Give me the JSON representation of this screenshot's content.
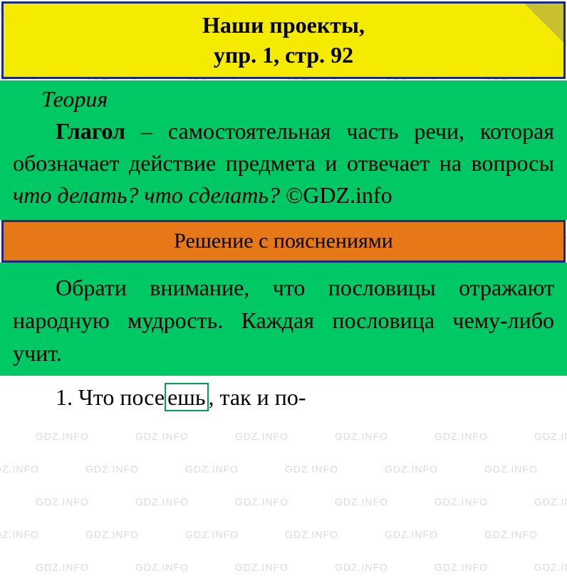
{
  "header": {
    "line1": "Наши проекты,",
    "line2": "упр. 1, стр. 92",
    "bg_color": "#f5eb00",
    "border_color": "#1a2980"
  },
  "theory": {
    "label": "Теория",
    "term": "Глагол",
    "dash": " – ",
    "text1": "самостоятельная часть речи, которая обозначает действие предмета и отвечает на вопросы ",
    "question": "что делать? что сде­лать?",
    "copyright": " ©GDZ.info",
    "bg_color": "#00c864"
  },
  "solution_header": {
    "text": "Решение с пояснениями",
    "bg_color": "#e67817",
    "border_color": "#1a2980"
  },
  "solution": {
    "text": "Обрати внимание, что посло­вицы отражают народную муд­рость. Каждая пословица чему-либо учит.",
    "bg_color": "#00c864"
  },
  "answer": {
    "number": "1. ",
    "text_before": "Что посе",
    "boxed": "ешь",
    "text_after": ", так и по-"
  },
  "watermark": {
    "text": "GDZ.INFO",
    "color": "rgba(150,150,150,0.35)",
    "fontsize": 14
  },
  "colors": {
    "green_box": "#00a050",
    "text": "#000000"
  }
}
